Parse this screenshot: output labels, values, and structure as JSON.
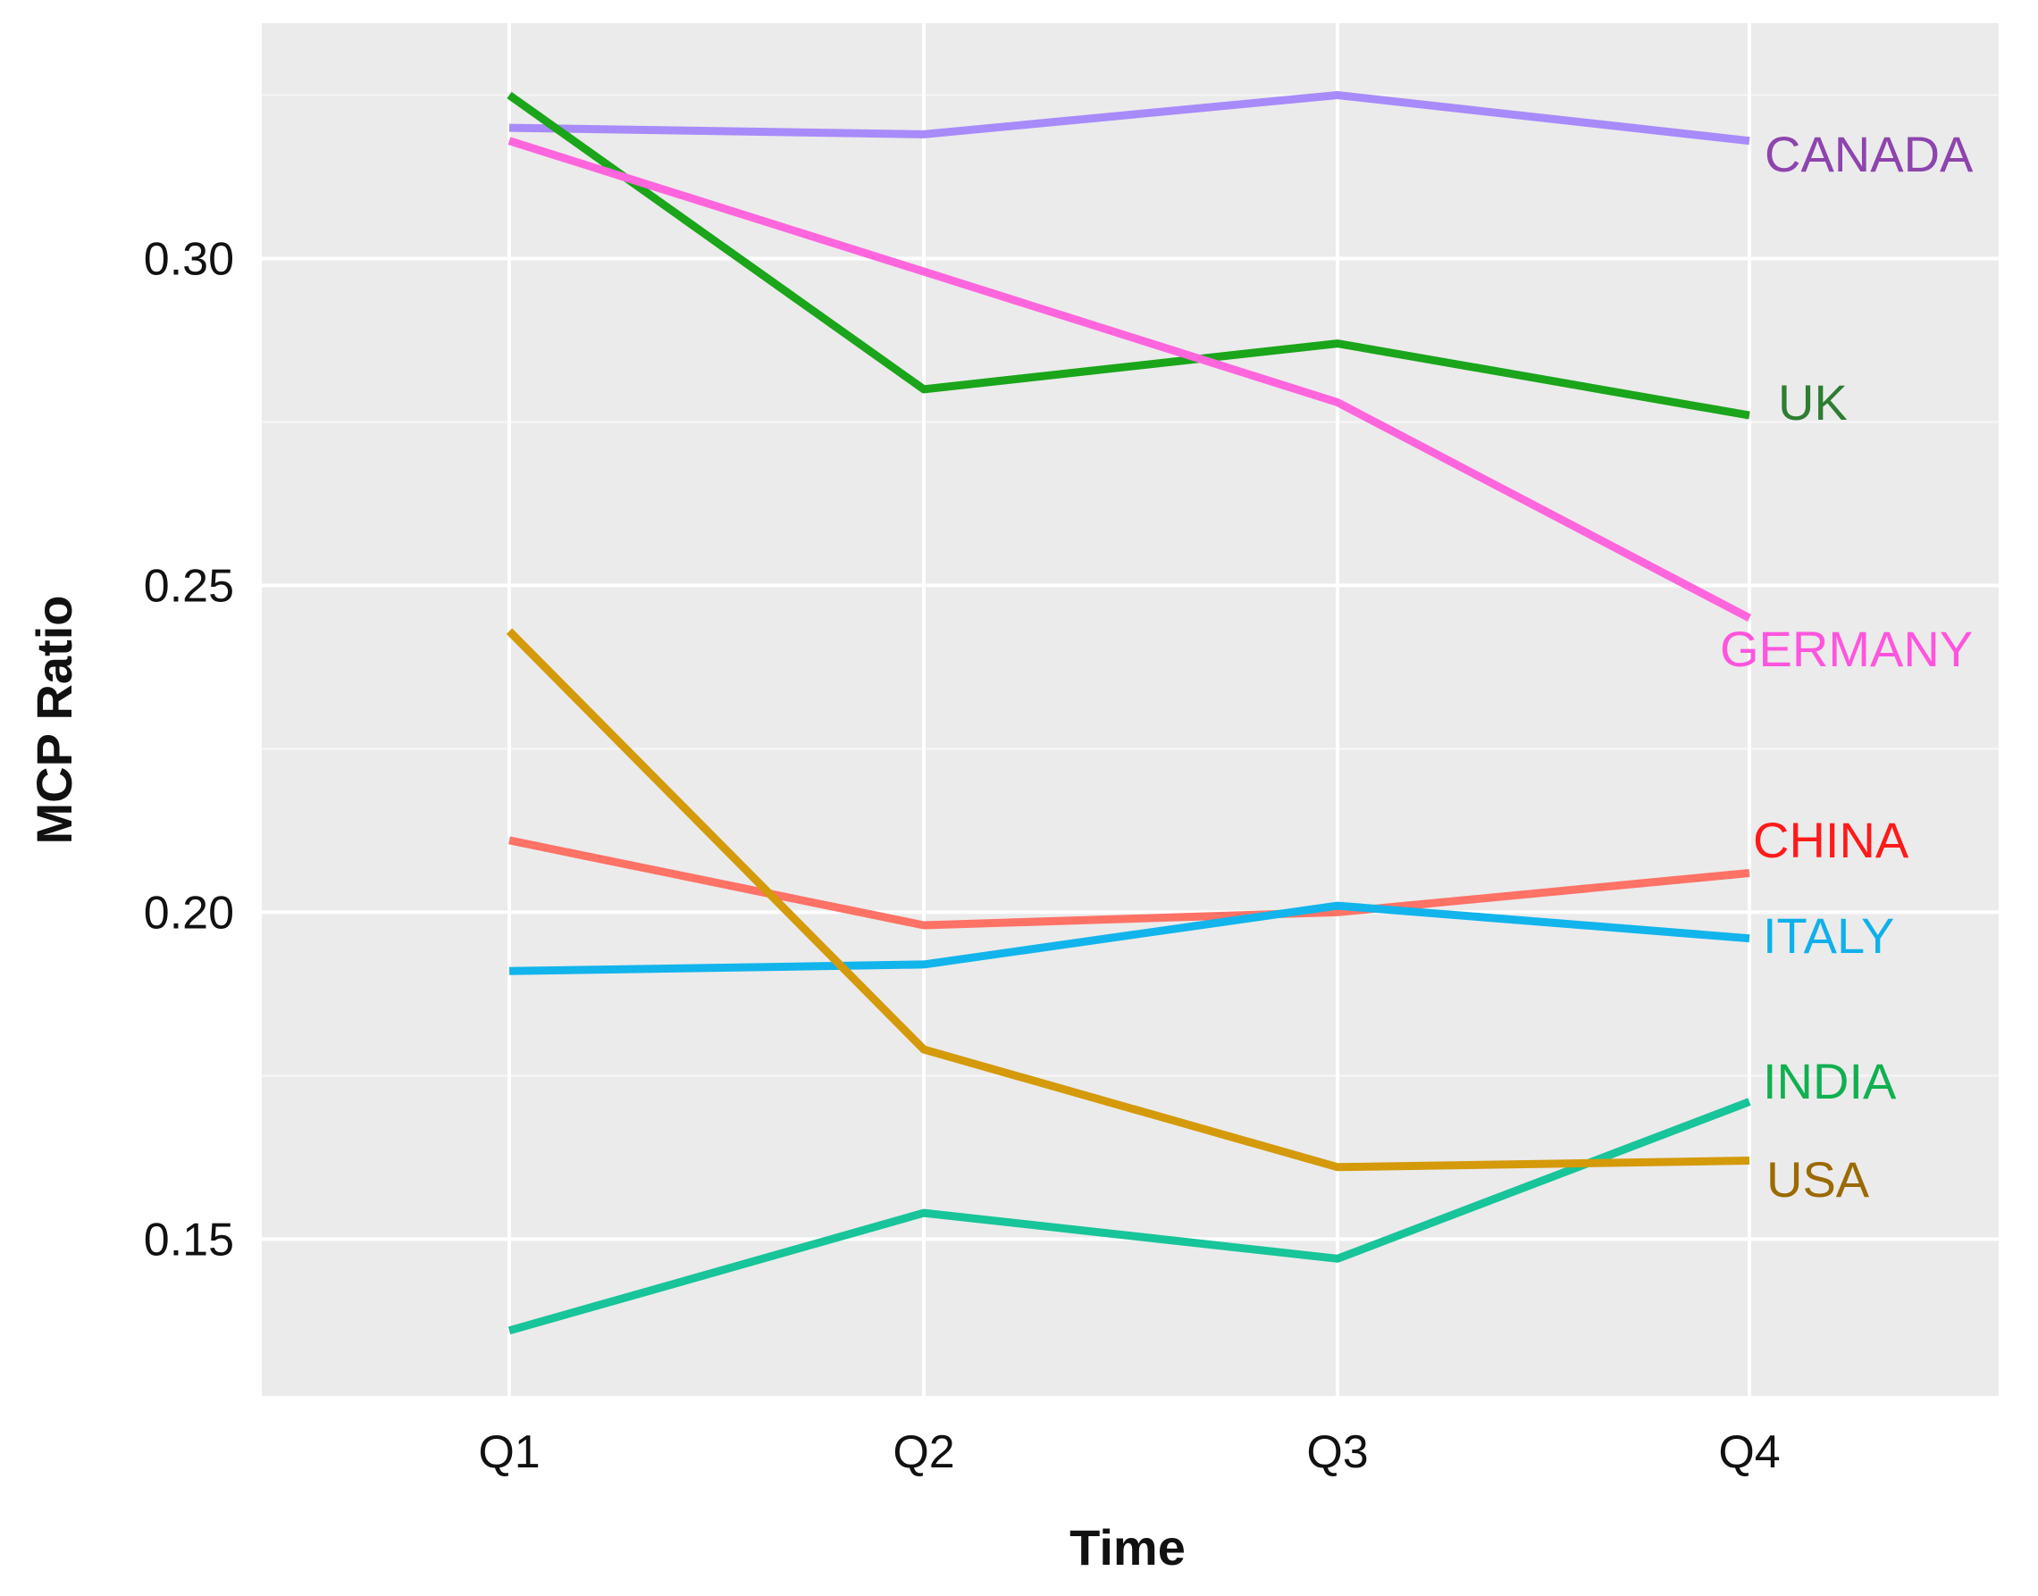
{
  "chart_data": {
    "type": "line",
    "title": "",
    "xlabel": "Time",
    "ylabel": "MCP Ratio",
    "categories": [
      "Q1",
      "Q2",
      "Q3",
      "Q4"
    ],
    "ylim": [
      0.126,
      0.336
    ],
    "yticks": [
      0.15,
      0.2,
      0.25,
      0.3
    ],
    "ytick_labels": [
      "0.15",
      "0.20",
      "0.25",
      "0.30"
    ],
    "grid": true,
    "legend": "direct labels at right end of each line",
    "series": [
      {
        "name": "CANADA",
        "color": "#a78bfa",
        "label_color": "#8e44ad",
        "values": [
          0.32,
          0.319,
          0.325,
          0.318
        ]
      },
      {
        "name": "UK",
        "color": "#1aa51a",
        "label_color": "#2e7d32",
        "values": [
          0.325,
          0.28,
          0.287,
          0.276
        ]
      },
      {
        "name": "GERMANY",
        "color": "#ff66dd",
        "label_color": "#ff55dd",
        "values": [
          0.318,
          0.298,
          0.278,
          0.245
        ]
      },
      {
        "name": "CHINA",
        "color": "#ff7266",
        "label_color": "#ff1a1a",
        "values": [
          0.211,
          0.198,
          0.2,
          0.206
        ]
      },
      {
        "name": "ITALY",
        "color": "#12b4ec",
        "label_color": "#10b0ea",
        "values": [
          0.191,
          0.192,
          0.201,
          0.196
        ]
      },
      {
        "name": "INDIA",
        "color": "#18c49a",
        "label_color": "#10b050",
        "values": [
          0.136,
          0.154,
          0.147,
          0.171
        ]
      },
      {
        "name": "USA",
        "color": "#d49a0a",
        "label_color": "#9b6a00",
        "values": [
          0.243,
          0.179,
          0.161,
          0.162
        ]
      }
    ]
  }
}
